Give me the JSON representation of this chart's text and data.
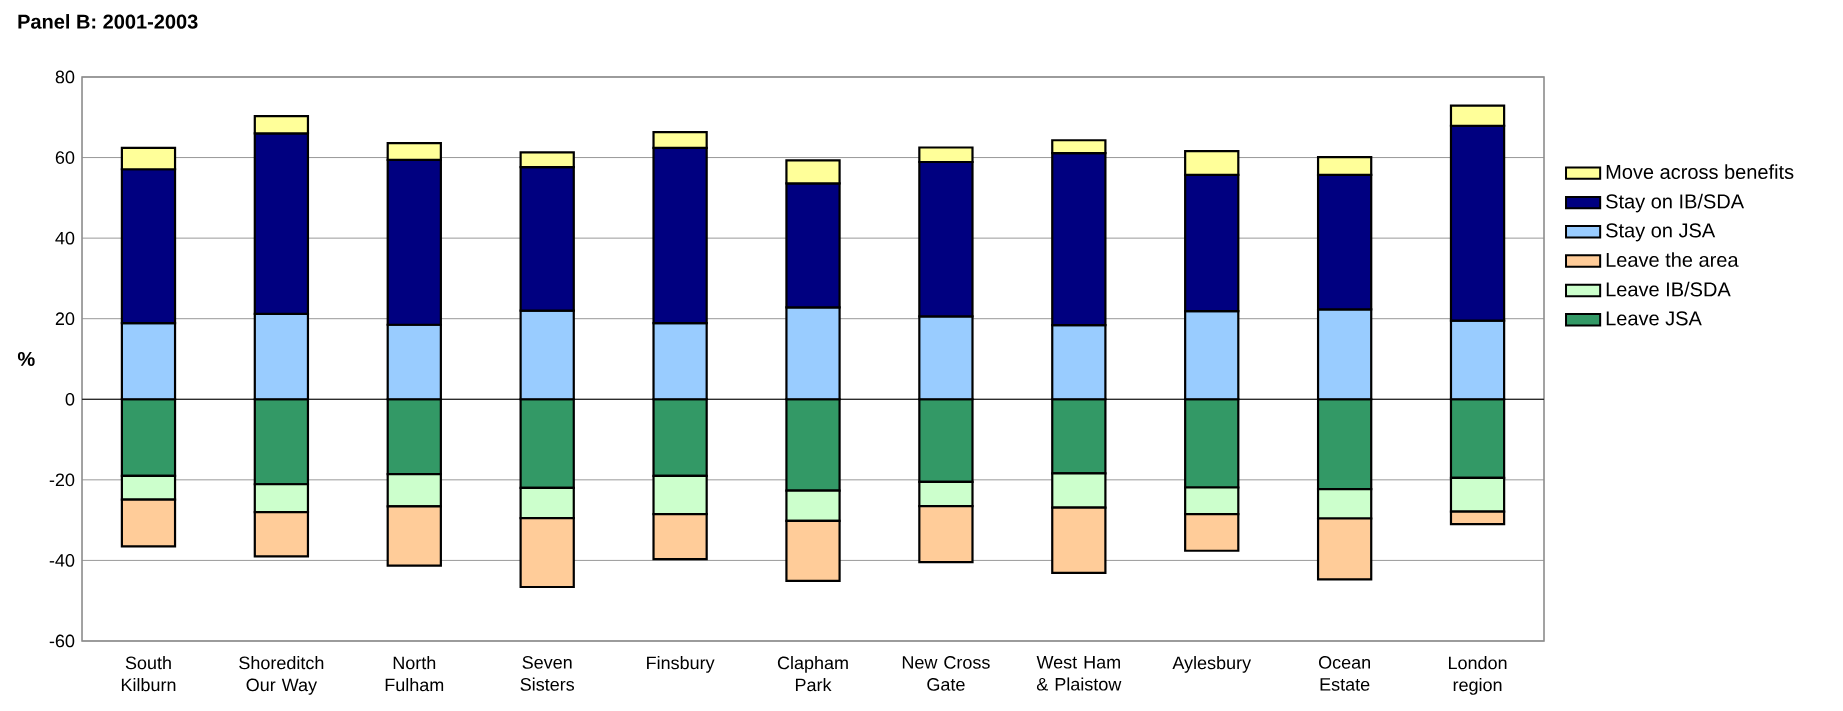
{
  "chart_data": {
    "type": "bar",
    "stacked": true,
    "title": "Panel B: 2001-2003",
    "ylabel": "%",
    "categories": [
      "South Kilburn",
      "Shoreditch Our Way",
      "North Fulham",
      "Seven Sisters",
      "Finsbury",
      "Clapham Park",
      "New Cross Gate",
      "West Ham & Plaistow",
      "Aylesbury",
      "Ocean Estate",
      "London region"
    ],
    "series": [
      {
        "name": "Leave JSA",
        "color": "#339966",
        "values": [
          -19.0,
          -21.1,
          -18.6,
          -22.0,
          -19.0,
          -22.7,
          -20.5,
          -18.4,
          -21.9,
          -22.3,
          -19.5
        ]
      },
      {
        "name": "Leave IB/SDA",
        "color": "#ccffcc",
        "values": [
          -5.9,
          -6.9,
          -8.0,
          -7.5,
          -9.5,
          -7.5,
          -6.0,
          -8.5,
          -6.6,
          -7.3,
          -8.4
        ]
      },
      {
        "name": "Leave the area",
        "color": "#ffcc99",
        "values": [
          -11.6,
          -11.0,
          -14.7,
          -17.1,
          -11.2,
          -14.9,
          -13.9,
          -16.2,
          -9.1,
          -15.1,
          -3.1
        ]
      },
      {
        "name": "Stay on JSA",
        "color": "#99ccff",
        "values": [
          18.9,
          21.2,
          18.5,
          22.0,
          18.9,
          22.8,
          20.6,
          18.4,
          21.9,
          22.3,
          19.5
        ]
      },
      {
        "name": "Stay on IB/SDA",
        "color": "#000080",
        "values": [
          38.2,
          44.8,
          40.9,
          35.6,
          43.5,
          30.8,
          38.3,
          42.7,
          33.8,
          33.4,
          48.4
        ]
      },
      {
        "name": "Move across benefits",
        "color": "#ffff99",
        "values": [
          5.3,
          4.3,
          4.2,
          3.7,
          3.9,
          5.7,
          3.6,
          3.2,
          5.9,
          4.4,
          5.0
        ]
      }
    ],
    "ylim": [
      -60,
      80
    ],
    "yticks": [
      -60,
      -40,
      -20,
      0,
      20,
      40,
      60,
      80
    ],
    "grid": "y",
    "legend": "right"
  }
}
